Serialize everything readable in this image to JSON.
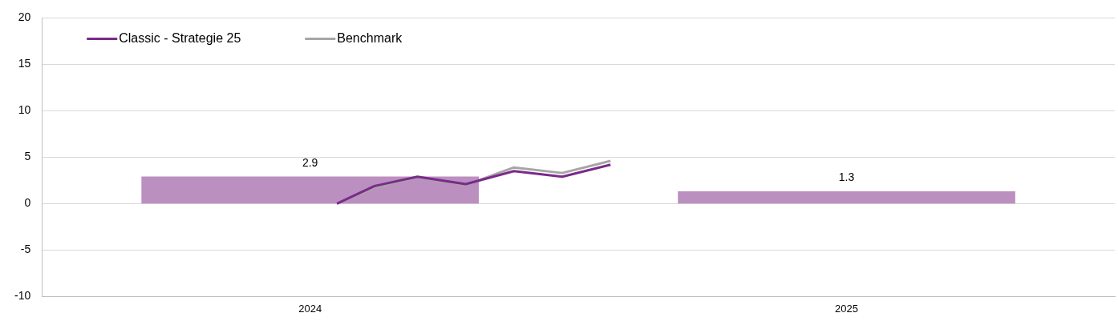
{
  "chart_data": {
    "type": "bar",
    "x": [
      2024,
      2025
    ],
    "xlim": [
      2023.5,
      2025.5
    ],
    "xticks": [
      2024,
      2025
    ],
    "series": [
      {
        "color": "#bb8fc0",
        "values": [
          2.9,
          1.3
        ],
        "value_labels": [
          "2.9",
          "1.3"
        ]
      },
      {
        "type": "line",
        "name": "Classic - Strategie 25",
        "color": "#7b2a8b",
        "x": [
          2024.05,
          2024.12,
          2024.2,
          2024.29,
          2024.38,
          2024.47,
          2024.56
        ],
        "values": [
          0,
          1.9,
          2.9,
          2.1,
          3.5,
          2.9,
          4.2
        ]
      },
      {
        "type": "line",
        "name": "Benchmark",
        "color": "#a6a6a6",
        "x": [
          2024.05,
          2024.12,
          2024.2,
          2024.29,
          2024.38,
          2024.47,
          2024.56
        ],
        "values": [
          0,
          1.7,
          2.8,
          2.0,
          3.9,
          3.3,
          4.6
        ]
      }
    ],
    "ylim": [
      -10,
      20
    ],
    "yticks": [
      -10,
      -5,
      0,
      5,
      10,
      15,
      20
    ],
    "grid": "y",
    "legend": "top left",
    "marker": "none",
    "line_style": "solid"
  }
}
